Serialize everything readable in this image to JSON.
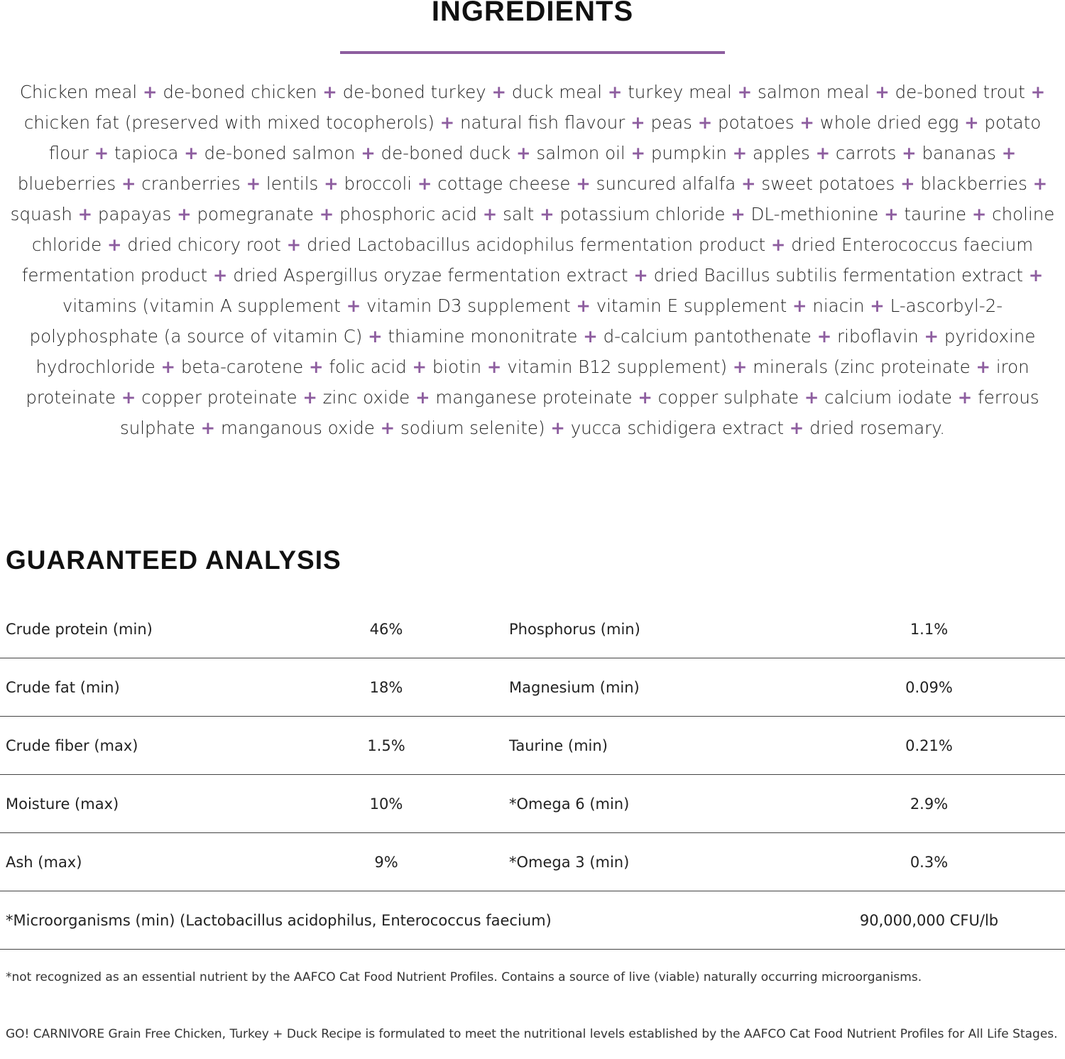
{
  "ingredients": {
    "title": "INGREDIENTS",
    "separator": "+",
    "accent_color": "#8d5d9f",
    "items": [
      "Chicken meal",
      "de-boned chicken",
      "de-boned turkey",
      "duck meal",
      "turkey meal",
      "salmon meal",
      "de-boned trout",
      "chicken fat (preserved with mixed tocopherols)",
      "natural fish flavour",
      "peas",
      "potatoes",
      "whole dried egg",
      "potato flour",
      "tapioca",
      "de-boned salmon",
      "de-boned duck",
      "salmon oil",
      "pumpkin",
      "apples",
      "carrots",
      "bananas",
      "blueberries",
      "cranberries",
      "lentils",
      "broccoli",
      "cottage cheese",
      "suncured alfalfa",
      "sweet potatoes",
      "blackberries",
      "squash",
      "papayas",
      "pomegranate",
      "phosphoric acid",
      "salt",
      "potassium chloride",
      "DL-methionine",
      "taurine",
      "choline chloride",
      "dried chicory root",
      "dried Lactobacillus acidophilus fermentation product",
      "dried Enterococcus faecium fermentation product",
      "dried Aspergillus oryzae fermentation extract",
      "dried Bacillus subtilis fermentation extract",
      "vitamins (vitamin A supplement",
      "vitamin D3 supplement",
      "vitamin E supplement",
      "niacin",
      "L-ascorbyl-2-polyphosphate (a source of vitamin C)",
      "thiamine mononitrate",
      "d-calcium pantothenate",
      "riboflavin",
      "pyridoxine hydrochloride",
      "beta-carotene",
      "folic acid",
      "biotin",
      "vitamin B12 supplement)",
      "minerals (zinc proteinate",
      "iron proteinate",
      "copper proteinate",
      "zinc oxide",
      "manganese proteinate",
      "copper sulphate",
      "calcium iodate",
      "ferrous sulphate",
      "manganous oxide",
      "sodium selenite)",
      "yucca schidigera extract",
      "dried rosemary."
    ]
  },
  "analysis": {
    "title": "GUARANTEED ANALYSIS",
    "rows": [
      {
        "label1": "Crude protein (min)",
        "value1": "46%",
        "label2": "Phosphorus (min)",
        "value2": "1.1%"
      },
      {
        "label1": "Crude fat (min)",
        "value1": "18%",
        "label2": "Magnesium (min)",
        "value2": "0.09%"
      },
      {
        "label1": "Crude fiber (max)",
        "value1": "1.5%",
        "label2": "Taurine (min)",
        "value2": "0.21%"
      },
      {
        "label1": "Moisture (max)",
        "value1": "10%",
        "label2": "*Omega 6 (min)",
        "value2": "2.9%"
      },
      {
        "label1": "Ash (max)",
        "value1": "9%",
        "label2": "*Omega 3 (min)",
        "value2": "0.3%"
      }
    ],
    "wide_row": {
      "label": "*Microorganisms (min) (Lactobacillus acidophilus, Enterococcus faecium)",
      "value": "90,000,000 CFU/lb"
    }
  },
  "footnote": "*not recognized as an essential nutrient by the AAFCO Cat Food Nutrient Profiles. Contains a source of live (viable) naturally occurring microorganisms.",
  "statement": "GO! CARNIVORE Grain Free Chicken, Turkey + Duck Recipe is formulated to meet the nutritional levels established by the AAFCO Cat Food Nutrient Profiles for All Life Stages."
}
